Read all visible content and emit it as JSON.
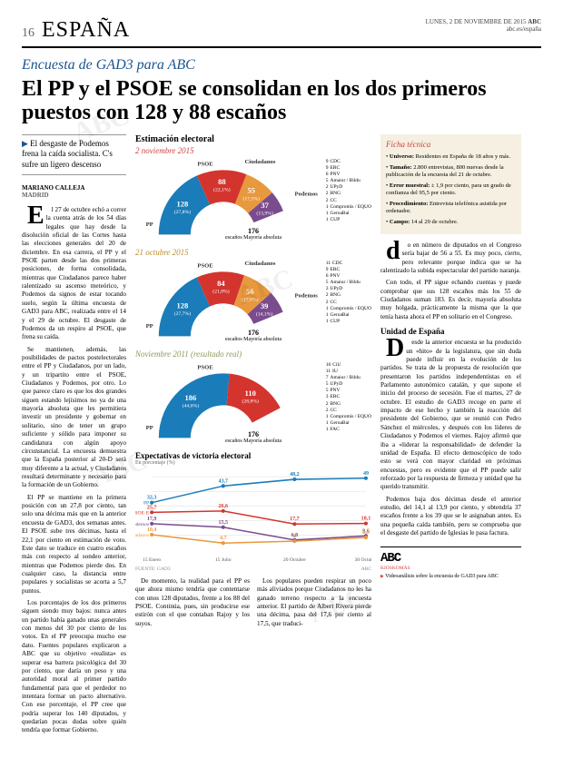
{
  "header": {
    "page_number": "16",
    "section": "ESPAÑA",
    "date_line": "LUNES, 2 DE NOVIEMBRE DE 2015",
    "masthead": "ABC",
    "url": "abc.es/españa"
  },
  "article": {
    "kicker": "Encuesta de GAD3 para ABC",
    "headline": "El PP y el PSOE se consolidan en los dos primeros puestos con 128 y 88 escaños",
    "subhead": "El desgaste de Podemos frena la caída socialista. C's sufre un ligero descenso",
    "byline": {
      "author": "MARIANO CALLEJA",
      "city": "MADRID"
    },
    "lead_paragraphs": [
      "El 27 de octubre echó a correr la cuenta atrás de los 54 días legales que hay desde la disolución oficial de las Cortes hasta las elecciones generales del 20 de diciembre. En esa carrera, el PP y el PSOE parten desde las dos primeras posiciones, de forma consolidada, mientras que Ciudadanos parece haber ralentizado su ascenso meteórico, y Podemos da signos de estar tocando suelo, según la última encuesta de GAD3 para ABC, realizada entre el 14 y el 29 de octubre. El desgaste de Podemos da un respiro al PSOE, que frena su caída.",
      "Se mantienen, además, las posibilidades de pactos postelectorales entre el PP y Ciudadanos, por un lado, y un tripartito entre el PSOE, Ciudadanos y Podemos, por otro. Lo que parece claro es que los dos grandes siguen estando lejísimos no ya de una mayoría absoluta que les permitiera investir un presidente y gobernar en solitario, sino de tener un grupo suficiente y sólido para imponer su candidatura con algún apoyo circunstancial. La encuesta demuestra que la España posterior al 20-D será muy diferente a la actual, y Ciudadanos resultará determinante y necesario para la formación de un Gobierno.",
      "El PP se mantiene en la primera posición con un 27,8 por ciento, tan solo una décima más que en la anterior encuesta de GAD3, dos semanas antes. El PSOE sube tres décimas, hasta el 22,1 por ciento en estimación de voto. Este dato se traduce en cuatro escaños más con respecto al sondeo anterior, mientras que Podemos pierde dos. En cualquier caso, la distancia entre populares y socialistas se acorta a 5,7 puntos.",
      "Los porcentajes de los dos primeros siguen siendo muy bajos: nunca antes un partido había ganado unas generales con menos del 30 por ciento de los votos. En el PP preocupa mucho ese dato. Fuentes populares explicaron a ABC que su objetivo «realista» es superar esa barrera psicológica del 30 por ciento, que daría un peso y una autoridad moral al primer partido fundamental para que el perdedor no intentara formar un pacto alternativo. Con ese porcentaje, el PP cree que podría superar los 140 diputados, y quedarían pocas dudas sobre quién tendría que formar Gobierno."
    ],
    "below_charts": [
      "De momento, la realidad para el PP es que ahora mismo tendría que contentarse con unos 128 diputados, frente a los 88 del PSOE. Continúa, pues, sin producirse ese estirón con el que contaban Rajoy y los suyos.",
      "Los populares pueden respirar un poco más aliviados porque Ciudadanos no les ha ganado terreno respecto a la encuesta anterior. El partido de Albert Rivera pierde una décima, pasa del 17,6 por ciento al 17,5, que traduci-"
    ],
    "right_column": [
      "do en número de diputados en el Congreso sería bajar de 56 a 55. Es muy poco, cierto, pero relevante porque indica que se ha ralentizado la subida espectacular del partido naranja.",
      "Con todo, el PP sigue echando cuentas y puede comprobar que sus 128 escaños más los 55 de Ciudadanos suman 183. Es decir, mayoría absoluta muy holgada, prácticamente la misma que la que tenía hasta ahora el PP en solitario en el Congreso."
    ],
    "unidad_h": "Unidad de España",
    "unidad_paragraphs": [
      "Desde la anterior encuesta se ha producido un «hito» de la legislatura, que sin duda puede influir en la evolución de los partidos. Se trata de la propuesta de resolución que presentaron los partidos independentistas en el Parlamento autonómico catalán, y que supone el inicio del proceso de secesión. Fue el martes, 27 de octubre. El estudio de GAD3 recoge en parte el impacto de ese hecho y también la reacción del presidente del Gobierno, que se reunió con Pedro Sánchez el miércoles, y después con los líderes de Ciudadanos y Podemos el viernes. Rajoy afirmó que iba a «liderar la responsabilidad» de defender la unidad de España. El efecto demoscópico de todo esto se verá con mayor claridad en próximas encuestas, pero es evidente que el PP puede salir reforzado por la respuesta de firmeza y unidad que ha querido transmitir.",
      "Podemos baja dos décimas desde el anterior estudio, del 14,1 al 13,9 por ciento, y obtendría 37 escaños frente a los 39 que se le asignaban antes. Es una pequeña caída también, pero se comprueba que el desgaste del partido de Iglesias le pasa factura."
    ]
  },
  "charts": {
    "main_title": "Estimación electoral",
    "majority_label": "escaños Mayoría absoluta",
    "majority_seats": "176",
    "colors": {
      "pp": "#1a7cb8",
      "psoe": "#d4342e",
      "cs": "#e8983d",
      "podemos": "#7a4c8e",
      "others": "#8a9a5b",
      "bg": "#ffffff",
      "grid": "#dddddd"
    },
    "polls": [
      {
        "date": "2 noviembre 2015",
        "date_color": "#c44",
        "segments": [
          {
            "party": "PP",
            "seats": 128,
            "pct": "27,8%",
            "color": "#1a7cb8"
          },
          {
            "party": "PSOE",
            "seats": 88,
            "pct": "22,1%",
            "color": "#d4342e"
          },
          {
            "party": "Ciudadanos",
            "seats": 55,
            "pct": "17,5%",
            "color": "#e8983d"
          },
          {
            "party": "Podemos",
            "seats": 37,
            "pct": "13,9%",
            "color": "#7a4c8e"
          }
        ],
        "others": [
          {
            "n": "9",
            "p": "CDC"
          },
          {
            "n": "9",
            "p": "ERC"
          },
          {
            "n": "6",
            "p": "PNV"
          },
          {
            "n": "5",
            "p": "Amaiur / Bildu"
          },
          {
            "n": "2",
            "p": "UPyD"
          },
          {
            "n": "2",
            "p": "BNG"
          },
          {
            "n": "2",
            "p": "CC"
          },
          {
            "n": "1",
            "p": "Compromís / EQUO"
          },
          {
            "n": "1",
            "p": "GeroaBai"
          },
          {
            "n": "1",
            "p": "CUP"
          }
        ]
      },
      {
        "date": "21 octubre 2015",
        "date_color": "#b89030",
        "segments": [
          {
            "party": "PP",
            "seats": 128,
            "pct": "27,7%",
            "color": "#1a7cb8"
          },
          {
            "party": "PSOE",
            "seats": 84,
            "pct": "21,8%",
            "color": "#d4342e"
          },
          {
            "party": "Ciudadanos",
            "seats": 56,
            "pct": "17,6%",
            "color": "#e8983d"
          },
          {
            "party": "Podemos",
            "seats": 39,
            "pct": "14,1%",
            "color": "#7a4c8e"
          }
        ],
        "others": [
          {
            "n": "11",
            "p": "CDC"
          },
          {
            "n": "9",
            "p": "ERC"
          },
          {
            "n": "6",
            "p": "PNV"
          },
          {
            "n": "5",
            "p": "Amaiur / Bildu"
          },
          {
            "n": "3",
            "p": "UPyD"
          },
          {
            "n": "2",
            "p": "BNG"
          },
          {
            "n": "2",
            "p": "CC"
          },
          {
            "n": "1",
            "p": "Compromís / EQUO"
          },
          {
            "n": "1",
            "p": "GeroaBai"
          },
          {
            "n": "1",
            "p": "CUP"
          }
        ]
      },
      {
        "date": "Noviembre 2011 (resultado real)",
        "date_color": "#8a9a5b",
        "segments": [
          {
            "party": "PP",
            "seats": 186,
            "pct": "44,6%",
            "color": "#1a7cb8"
          },
          {
            "party": "PSOE",
            "seats": 110,
            "pct": "28,8%",
            "color": "#d4342e"
          }
        ],
        "others": [
          {
            "n": "16",
            "p": "CiU"
          },
          {
            "n": "11",
            "p": "IU"
          },
          {
            "n": "7",
            "p": "Amaiur / Bildu"
          },
          {
            "n": "5",
            "p": "UPyD"
          },
          {
            "n": "5",
            "p": "PNV"
          },
          {
            "n": "3",
            "p": "ERC"
          },
          {
            "n": "2",
            "p": "BNG"
          },
          {
            "n": "2",
            "p": "CC"
          },
          {
            "n": "1",
            "p": "Compromís / EQUO"
          },
          {
            "n": "1",
            "p": "GeroaBai"
          },
          {
            "n": "1",
            "p": "FAC"
          }
        ]
      }
    ],
    "line_chart": {
      "title": "Expectativas de victoria electoral",
      "subtitle": "En porcentaje (%)",
      "x_labels": [
        "15 Enero",
        "15 Julio",
        "20 Octubre",
        "30 Octubre"
      ],
      "y_max": 50,
      "y_min": 0,
      "series": [
        {
          "party": "PP",
          "color": "#1a7cb8",
          "values": [
            32.3,
            43.7,
            48.2,
            49.0
          ]
        },
        {
          "party": "PSOE",
          "color": "#d4342e",
          "values": [
            25.7,
            26.6,
            17.7,
            18.1
          ]
        },
        {
          "party": "Podemos",
          "color": "#7a4c8e",
          "values": [
            17.9,
            15.5,
            6.8,
            9.6
          ]
        },
        {
          "party": "Ciudadanos",
          "color": "#e8983d",
          "values": [
            10.4,
            4.7,
            6.0,
            8.5
          ]
        }
      ],
      "source": "FUENTE: GAD3",
      "credit": "ABC"
    }
  },
  "ficha": {
    "title": "Ficha técnica",
    "rows": [
      {
        "label": "Universo:",
        "text": "Residentes en España de 18 años y más."
      },
      {
        "label": "Tamaño:",
        "text": "2.800 entrevistas, 800 nuevas desde la publicación de la encuesta del 21 de octubre."
      },
      {
        "label": "Error muestral:",
        "text": "± 1,9 por ciento, para un grado de confianza del 95,5 por ciento."
      },
      {
        "label": "Procedimiento:",
        "text": "Entrevista telefónica asistida por ordenador."
      },
      {
        "label": "Campo:",
        "text": "14 al 29 de octubre."
      }
    ]
  },
  "footer": {
    "logo": "ABC",
    "tagline": "KIOSKOMÁS",
    "caption": "Videoanálisis sobre la encuesta de GAD3 para ABC"
  }
}
